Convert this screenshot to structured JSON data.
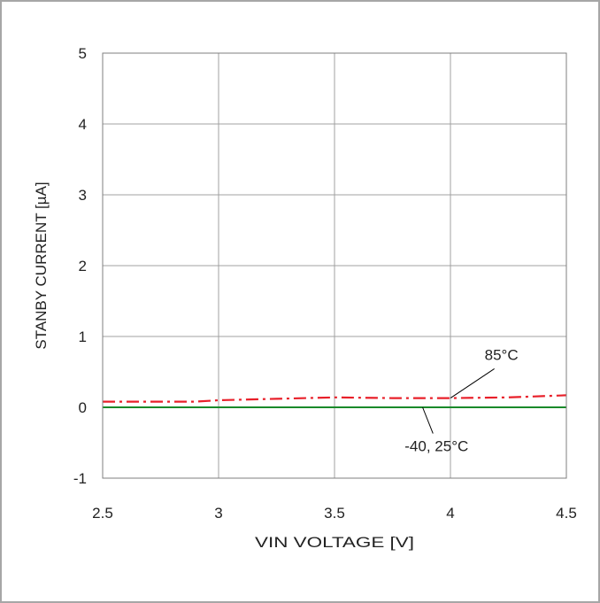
{
  "chart_data": {
    "type": "line",
    "xlabel": "VIN VOLTAGE [V]",
    "ylabel": "STANBY CURRENT [µA]",
    "xlim": [
      2.5,
      4.5
    ],
    "ylim": [
      -1,
      5
    ],
    "x_ticks": [
      2.5,
      3,
      3.5,
      4,
      4.5
    ],
    "y_ticks": [
      -1,
      0,
      1,
      2,
      3,
      4,
      5
    ],
    "x_tick_labels": [
      "2.5",
      "3",
      "3.5",
      "4",
      "4.5"
    ],
    "y_tick_labels": [
      "-1",
      "0",
      "1",
      "2",
      "3",
      "4",
      "5"
    ],
    "grid": true,
    "series": [
      {
        "name": "85°C",
        "color": "#e8202a",
        "style": "dash-dot",
        "x": [
          2.5,
          2.75,
          2.9,
          3.0,
          3.25,
          3.5,
          3.75,
          4.0,
          4.25,
          4.5
        ],
        "y": [
          0.08,
          0.08,
          0.08,
          0.1,
          0.12,
          0.14,
          0.13,
          0.13,
          0.14,
          0.17
        ]
      },
      {
        "name": "-40, 25°C",
        "color": "#1a8a2a",
        "style": "solid",
        "x": [
          2.5,
          3.0,
          3.5,
          4.0,
          4.5
        ],
        "y": [
          0.0,
          0.0,
          0.0,
          0.0,
          0.0
        ]
      }
    ],
    "annotations": [
      {
        "text": "85°C",
        "label_x": 4.22,
        "label_y": 0.67,
        "point_x": 4.0,
        "point_y": 0.13
      },
      {
        "text": "-40, 25°C",
        "label_x": 3.94,
        "label_y": -0.62,
        "point_x": 3.88,
        "point_y": 0.0
      }
    ]
  }
}
